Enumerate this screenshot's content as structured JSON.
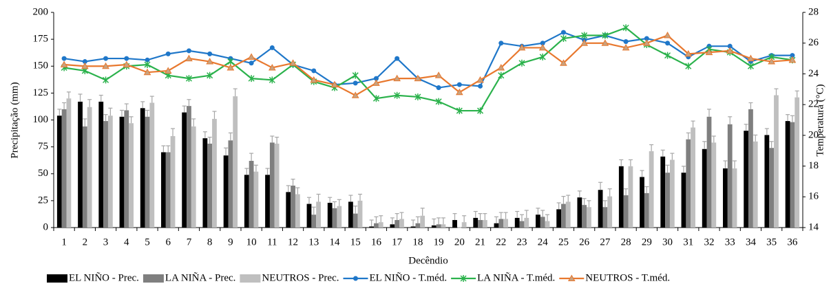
{
  "chart_data": {
    "type": "bar-line",
    "x_label": "Decêndio",
    "y_label": "Precipitação (mm)",
    "y2_label": "Temperatura (°C)",
    "categories": [
      "1",
      "2",
      "3",
      "4",
      "5",
      "6",
      "7",
      "8",
      "9",
      "10",
      "11",
      "12",
      "13",
      "14",
      "15",
      "16",
      "17",
      "18",
      "19",
      "20",
      "21",
      "22",
      "23",
      "24",
      "25",
      "26",
      "27",
      "28",
      "29",
      "30",
      "31",
      "32",
      "33",
      "34",
      "35",
      "36"
    ],
    "ylim": [
      0,
      200
    ],
    "yticks": [
      0,
      25,
      50,
      75,
      100,
      125,
      150,
      175,
      200
    ],
    "y2lim": [
      14,
      28
    ],
    "y2ticks": [
      14,
      16,
      18,
      20,
      22,
      24,
      26,
      28
    ],
    "series": [
      {
        "name": "EL NIÑO - Prec.",
        "kind": "bar",
        "color": "#000000",
        "values": [
          104,
          117,
          117,
          103,
          111,
          70,
          107,
          83,
          67,
          49,
          49,
          33,
          22,
          23,
          24,
          1,
          3,
          1,
          2,
          7,
          9,
          4,
          9,
          12,
          17,
          28,
          35,
          57,
          47,
          66,
          51,
          73,
          55,
          90,
          86,
          99
        ],
        "errors": [
          6,
          7,
          6,
          6,
          6,
          6,
          6,
          6,
          7,
          6,
          6,
          6,
          6,
          5,
          6,
          6,
          6,
          6,
          6,
          6,
          6,
          6,
          6,
          6,
          6,
          6,
          7,
          6,
          6,
          6,
          6,
          7,
          7,
          6,
          6,
          6
        ]
      },
      {
        "name": "LA NIÑA - Prec.",
        "kind": "bar",
        "color": "#7f7f7f",
        "values": [
          110,
          94,
          99,
          109,
          103,
          70,
          113,
          78,
          81,
          62,
          79,
          39,
          12,
          18,
          13,
          4,
          7,
          4,
          3,
          0,
          7,
          8,
          6,
          10,
          22,
          21,
          19,
          30,
          32,
          51,
          82,
          103,
          96,
          110,
          74,
          98
        ],
        "errors": [
          6,
          7,
          6,
          6,
          6,
          6,
          6,
          6,
          7,
          7,
          6,
          6,
          7,
          6,
          7,
          6,
          6,
          6,
          6,
          0,
          6,
          6,
          6,
          6,
          7,
          6,
          6,
          6,
          6,
          7,
          6,
          7,
          7,
          6,
          6,
          6
        ]
      },
      {
        "name": "NEUTROS - Prec.",
        "kind": "bar",
        "color": "#bfbfbf",
        "values": [
          120,
          112,
          104,
          97,
          116,
          85,
          94,
          101,
          122,
          52,
          78,
          31,
          24,
          20,
          25,
          5,
          8,
          11,
          3,
          5,
          7,
          8,
          9,
          6,
          24,
          19,
          29,
          57,
          71,
          63,
          93,
          79,
          55,
          80,
          123,
          121
        ],
        "errors": [
          6,
          7,
          7,
          6,
          6,
          7,
          7,
          7,
          7,
          6,
          6,
          6,
          7,
          6,
          6,
          6,
          6,
          7,
          6,
          6,
          6,
          6,
          7,
          6,
          6,
          6,
          7,
          6,
          6,
          6,
          6,
          6,
          7,
          6,
          6,
          6
        ]
      },
      {
        "name": "EL NIÑO - T.méd.",
        "kind": "line",
        "axis": "y2",
        "marker": "circle",
        "color": "#1f77c9",
        "values": [
          25.0,
          24.8,
          25.0,
          25.0,
          24.9,
          25.3,
          25.5,
          25.3,
          25.0,
          24.7,
          25.7,
          24.6,
          24.2,
          23.3,
          23.4,
          23.7,
          25.0,
          23.7,
          23.1,
          23.3,
          23.2,
          26.0,
          25.8,
          26.0,
          26.7,
          26.2,
          26.5,
          26.1,
          26.3,
          26.0,
          25.1,
          25.8,
          25.8,
          24.8,
          25.2,
          25.2
        ]
      },
      {
        "name": "LA NIÑA - T.méd.",
        "kind": "line",
        "axis": "y2",
        "marker": "star",
        "color": "#2bb24c",
        "values": [
          24.4,
          24.2,
          23.6,
          24.5,
          24.6,
          23.9,
          23.7,
          23.9,
          24.8,
          23.7,
          23.6,
          24.6,
          23.5,
          23.1,
          23.9,
          22.4,
          22.6,
          22.5,
          22.2,
          21.6,
          21.6,
          23.9,
          24.7,
          25.1,
          26.3,
          26.5,
          26.5,
          27.0,
          25.9,
          25.2,
          24.5,
          25.6,
          25.4,
          24.5,
          25.1,
          24.9
        ]
      },
      {
        "name": "NEUTROS - T.méd.",
        "kind": "line",
        "axis": "y2",
        "marker": "triangle",
        "color": "#e8782e",
        "values": [
          24.6,
          24.5,
          24.5,
          24.6,
          24.1,
          24.2,
          25.0,
          24.8,
          24.4,
          25.1,
          24.4,
          24.7,
          23.6,
          23.3,
          22.6,
          23.4,
          23.7,
          23.7,
          23.9,
          22.8,
          23.6,
          24.4,
          25.7,
          25.7,
          24.7,
          26.0,
          26.0,
          25.7,
          26.0,
          26.5,
          25.3,
          25.4,
          25.5,
          25.0,
          24.8,
          24.9
        ]
      }
    ]
  }
}
